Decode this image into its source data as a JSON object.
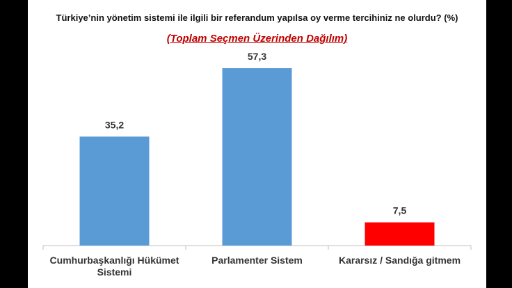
{
  "chart_data": {
    "type": "bar",
    "title": "Türkiye’nin yönetim sistemi ile ilgili bir referandum yapılsa oy verme tercihiniz ne olurdu? (%)",
    "subtitle": "(Toplam Seçmen Üzerinden Dağılım)",
    "categories": [
      "Cumhurbaşkanlığı Hükümet Sistemi",
      "Parlamenter Sistem",
      "Kararsız / Sandığa gitmem"
    ],
    "values": [
      35.2,
      57.3,
      7.5
    ],
    "value_labels": [
      "35,2",
      "57,3",
      "7,5"
    ],
    "colors": [
      "#5b9bd5",
      "#5b9bd5",
      "#ff0000"
    ]
  }
}
